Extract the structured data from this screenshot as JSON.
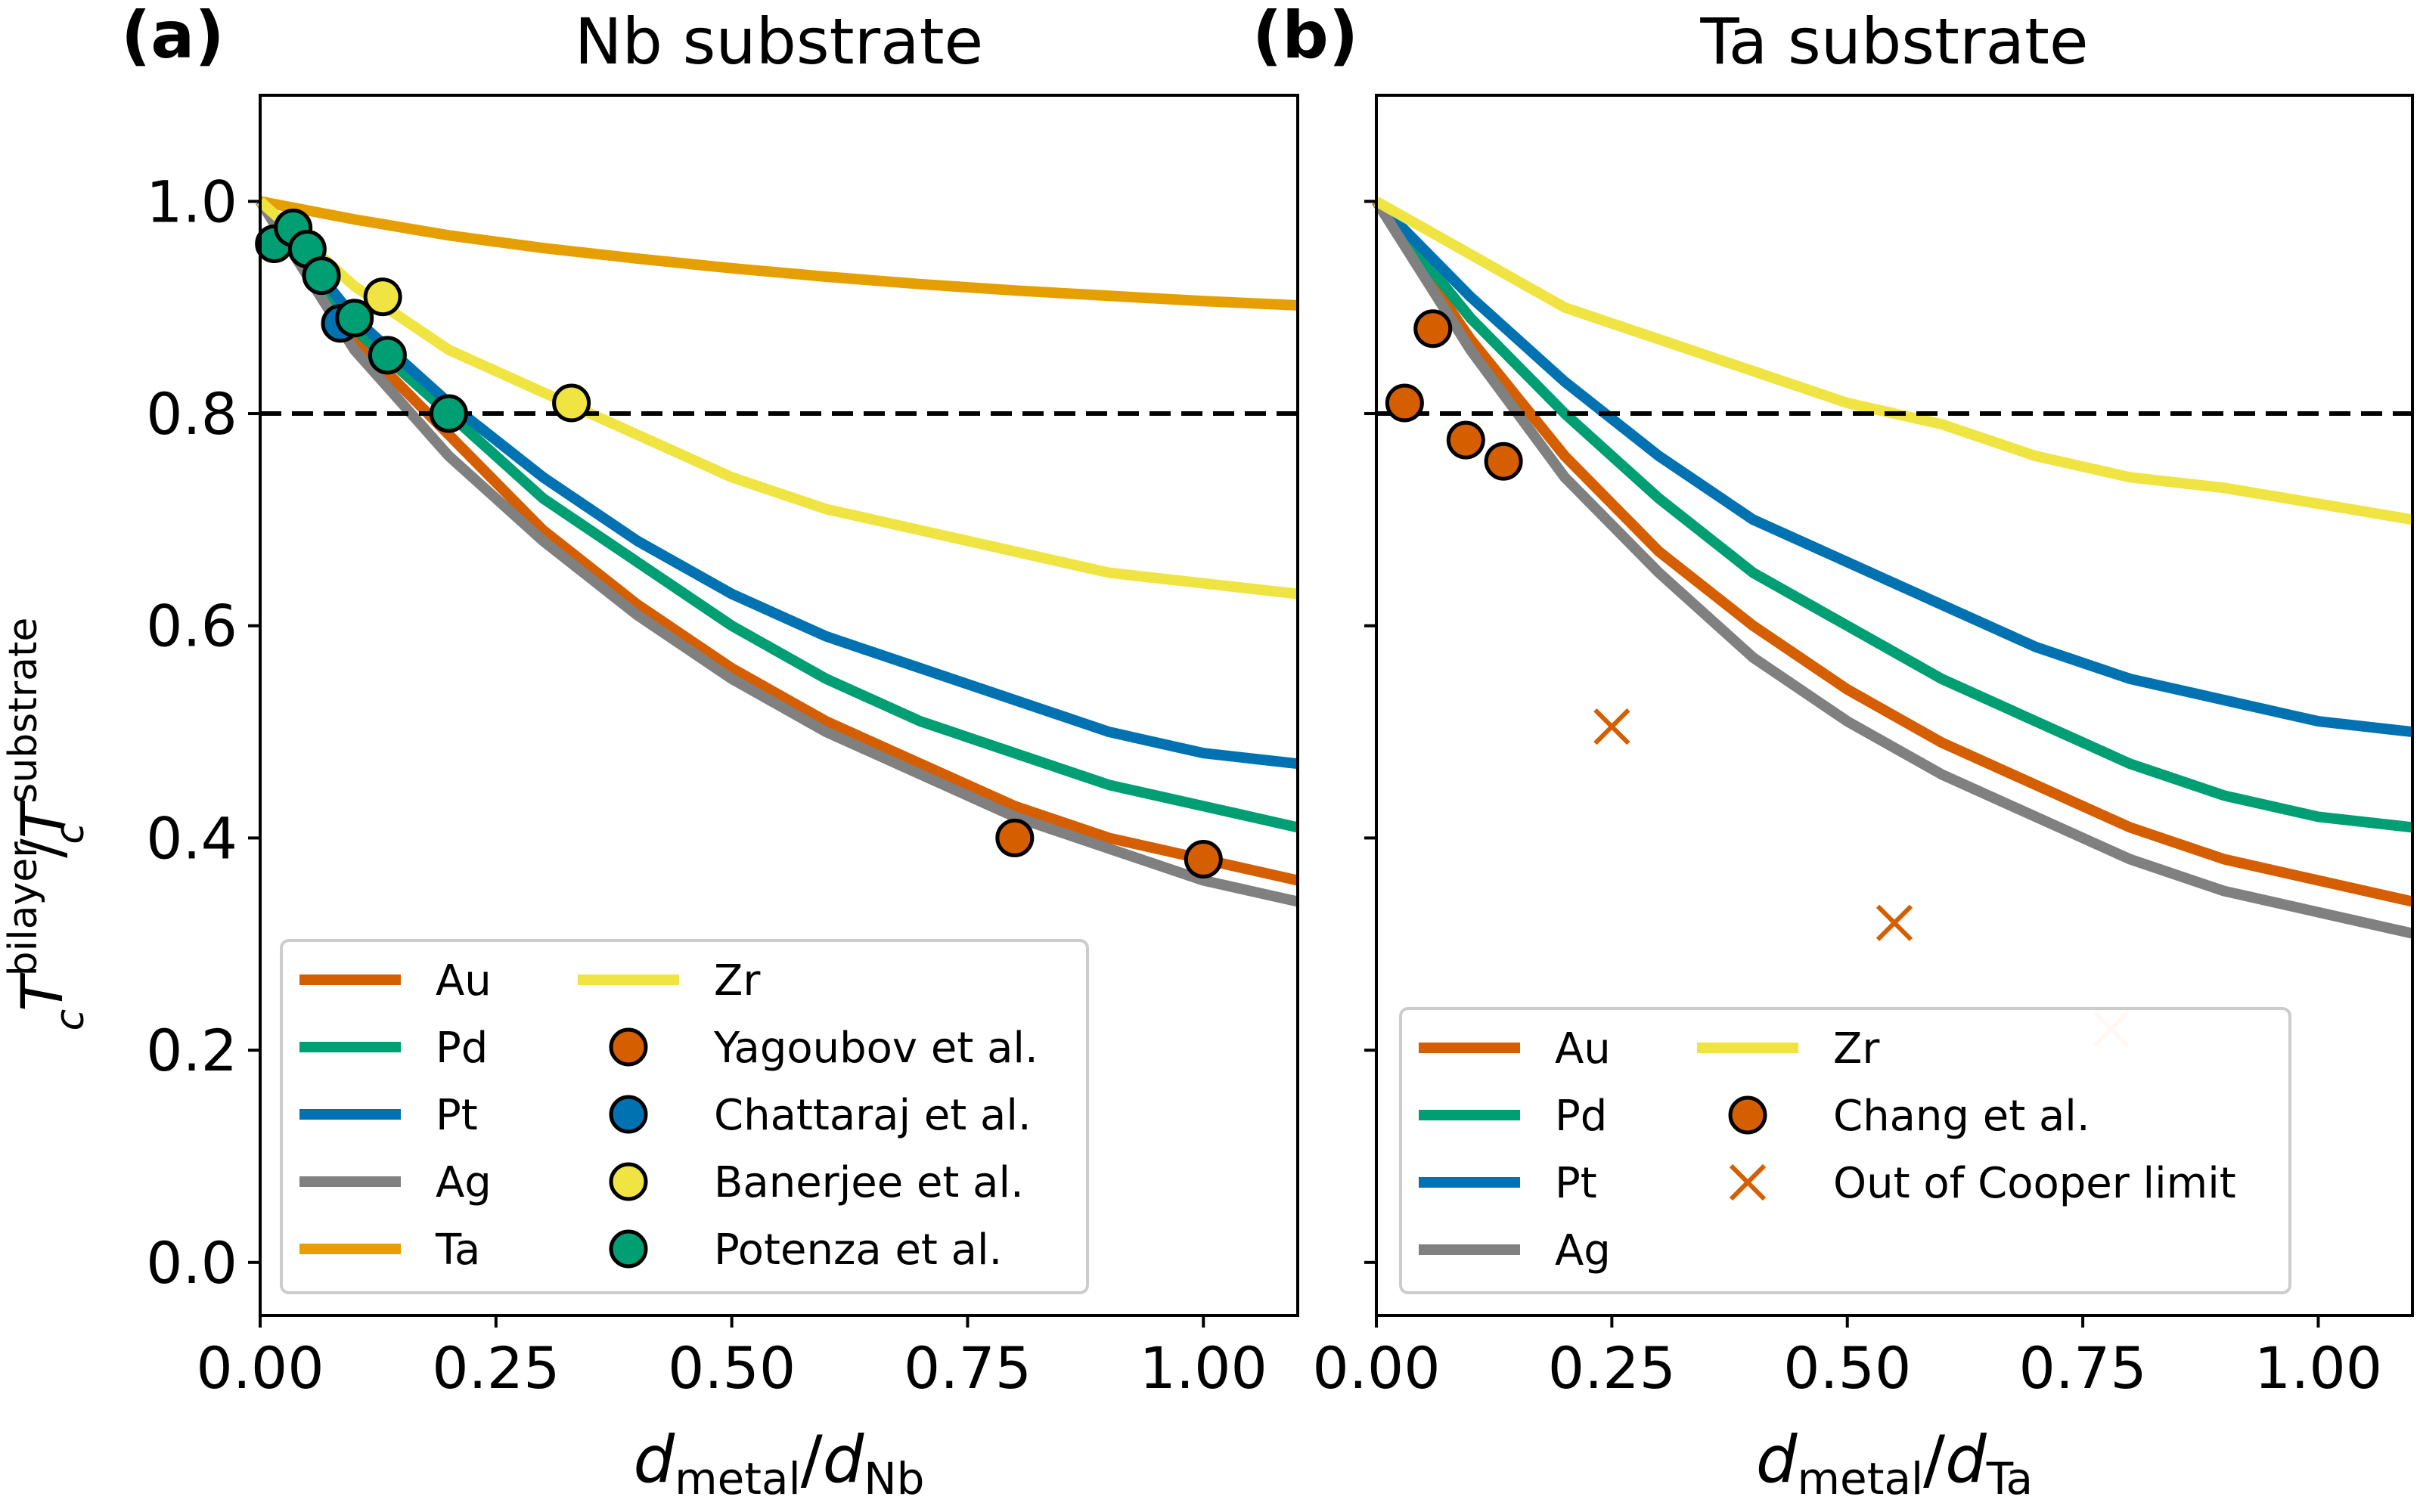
{
  "shared_ylabel": {
    "main": "T",
    "sup1": "bilayer",
    "sub1": "c",
    "slash": "/",
    "main2": "T",
    "sup2": "substrate",
    "sub2": "c"
  },
  "chart_data": [
    {
      "type": "line",
      "panel_label": "(a)",
      "title": "Nb substrate",
      "xlabel": {
        "main": "d",
        "sub1": "metal",
        "slash": "/",
        "main2": "d",
        "sub2": "Nb"
      },
      "xlim": [
        0,
        1.1
      ],
      "ylim": [
        -0.05,
        1.1
      ],
      "xticks": [
        "0.00",
        "0.25",
        "0.50",
        "0.75",
        "1.00"
      ],
      "xtick_values": [
        0,
        0.25,
        0.5,
        0.75,
        1.0
      ],
      "yticks": [
        "0.0",
        "0.2",
        "0.4",
        "0.6",
        "0.8",
        "1.0"
      ],
      "ytick_values": [
        0,
        0.2,
        0.4,
        0.6,
        0.8,
        1.0
      ],
      "reference_line": 0.8,
      "series": [
        {
          "name": "Au",
          "color": "#d55e00",
          "x": [
            0,
            0.1,
            0.2,
            0.3,
            0.4,
            0.5,
            0.6,
            0.7,
            0.8,
            0.9,
            1.0,
            1.1
          ],
          "y": [
            1.0,
            0.87,
            0.78,
            0.69,
            0.62,
            0.56,
            0.51,
            0.47,
            0.43,
            0.4,
            0.38,
            0.36
          ]
        },
        {
          "name": "Pd",
          "color": "#009e73",
          "x": [
            0,
            0.1,
            0.2,
            0.3,
            0.4,
            0.5,
            0.6,
            0.7,
            0.8,
            0.9,
            1.0,
            1.1
          ],
          "y": [
            1.0,
            0.88,
            0.8,
            0.72,
            0.66,
            0.6,
            0.55,
            0.51,
            0.48,
            0.45,
            0.43,
            0.41
          ]
        },
        {
          "name": "Pt",
          "color": "#0072b2",
          "x": [
            0,
            0.1,
            0.2,
            0.3,
            0.4,
            0.5,
            0.6,
            0.7,
            0.8,
            0.9,
            1.0,
            1.1
          ],
          "y": [
            1.0,
            0.89,
            0.81,
            0.74,
            0.68,
            0.63,
            0.59,
            0.56,
            0.53,
            0.5,
            0.48,
            0.47
          ]
        },
        {
          "name": "Ag",
          "color": "#808080",
          "x": [
            0,
            0.1,
            0.2,
            0.3,
            0.4,
            0.5,
            0.6,
            0.7,
            0.8,
            0.9,
            1.0,
            1.1
          ],
          "y": [
            1.0,
            0.86,
            0.76,
            0.68,
            0.61,
            0.55,
            0.5,
            0.46,
            0.42,
            0.39,
            0.36,
            0.34
          ]
        },
        {
          "name": "Ta",
          "color": "#e69f00",
          "x": [
            0,
            0.1,
            0.2,
            0.3,
            0.4,
            0.5,
            0.6,
            0.7,
            0.8,
            0.9,
            1.0,
            1.1
          ],
          "y": [
            1.0,
            0.983,
            0.968,
            0.956,
            0.946,
            0.937,
            0.929,
            0.922,
            0.916,
            0.911,
            0.906,
            0.902
          ]
        },
        {
          "name": "Zr",
          "color": "#f0e442",
          "x": [
            0,
            0.1,
            0.2,
            0.3,
            0.4,
            0.5,
            0.6,
            0.7,
            0.8,
            0.9,
            1.0,
            1.1
          ],
          "y": [
            1.0,
            0.92,
            0.86,
            0.82,
            0.78,
            0.74,
            0.71,
            0.69,
            0.67,
            0.65,
            0.64,
            0.63
          ]
        }
      ],
      "scatter": [
        {
          "name": "Yagoubov et al.",
          "color": "#d55e00",
          "x": [
            0.8,
            1.0
          ],
          "y": [
            0.4,
            0.38
          ]
        },
        {
          "name": "Chattaraj et al.",
          "color": "#0072b2",
          "x": [
            0.085
          ],
          "y": [
            0.885
          ]
        },
        {
          "name": "Banerjee et al.",
          "color": "#f0e442",
          "x": [
            0.13,
            0.33
          ],
          "y": [
            0.91,
            0.81
          ]
        },
        {
          "name": "Potenza et al.",
          "color": "#009e73",
          "x": [
            0.015,
            0.035,
            0.05,
            0.065,
            0.1,
            0.135,
            0.2
          ],
          "y": [
            0.96,
            0.975,
            0.955,
            0.93,
            0.89,
            0.855,
            0.8
          ]
        }
      ],
      "legend": {
        "position": "lower-left",
        "columns": 2,
        "entries": [
          {
            "label": "Au",
            "kind": "line",
            "color": "#d55e00"
          },
          {
            "label": "Pd",
            "kind": "line",
            "color": "#009e73"
          },
          {
            "label": "Pt",
            "kind": "line",
            "color": "#0072b2"
          },
          {
            "label": "Ag",
            "kind": "line",
            "color": "#808080"
          },
          {
            "label": "Ta",
            "kind": "line",
            "color": "#e69f00"
          },
          {
            "label": "Zr",
            "kind": "line",
            "color": "#f0e442"
          },
          {
            "label": "Yagoubov et al.",
            "kind": "marker",
            "color": "#d55e00"
          },
          {
            "label": "Chattaraj et al.",
            "kind": "marker",
            "color": "#0072b2"
          },
          {
            "label": "Banerjee et al.",
            "kind": "marker",
            "color": "#f0e442"
          },
          {
            "label": "Potenza et al.",
            "kind": "marker",
            "color": "#009e73"
          }
        ]
      }
    },
    {
      "type": "line",
      "panel_label": "(b)",
      "title": "Ta substrate",
      "xlabel": {
        "main": "d",
        "sub1": "metal",
        "slash": "/",
        "main2": "d",
        "sub2": "Ta"
      },
      "xlim": [
        0,
        1.1
      ],
      "ylim": [
        -0.05,
        1.1
      ],
      "xticks": [
        "0.00",
        "0.25",
        "0.50",
        "0.75",
        "1.00"
      ],
      "xtick_values": [
        0,
        0.25,
        0.5,
        0.75,
        1.0
      ],
      "yticks": [],
      "ytick_values": [
        0,
        0.2,
        0.4,
        0.6,
        0.8,
        1.0
      ],
      "reference_line": 0.8,
      "series": [
        {
          "name": "Au",
          "color": "#d55e00",
          "x": [
            0,
            0.1,
            0.2,
            0.3,
            0.4,
            0.5,
            0.6,
            0.7,
            0.8,
            0.9,
            1.0,
            1.1
          ],
          "y": [
            1.0,
            0.87,
            0.76,
            0.67,
            0.6,
            0.54,
            0.49,
            0.45,
            0.41,
            0.38,
            0.36,
            0.34
          ]
        },
        {
          "name": "Pd",
          "color": "#009e73",
          "x": [
            0,
            0.1,
            0.2,
            0.3,
            0.4,
            0.5,
            0.6,
            0.7,
            0.8,
            0.9,
            1.0,
            1.1
          ],
          "y": [
            1.0,
            0.89,
            0.8,
            0.72,
            0.65,
            0.6,
            0.55,
            0.51,
            0.47,
            0.44,
            0.42,
            0.41
          ]
        },
        {
          "name": "Pt",
          "color": "#0072b2",
          "x": [
            0,
            0.1,
            0.2,
            0.3,
            0.4,
            0.5,
            0.6,
            0.7,
            0.8,
            0.9,
            1.0,
            1.1
          ],
          "y": [
            1.0,
            0.91,
            0.83,
            0.76,
            0.7,
            0.66,
            0.62,
            0.58,
            0.55,
            0.53,
            0.51,
            0.5
          ]
        },
        {
          "name": "Ag",
          "color": "#808080",
          "x": [
            0,
            0.1,
            0.2,
            0.3,
            0.4,
            0.5,
            0.6,
            0.7,
            0.8,
            0.9,
            1.0,
            1.1
          ],
          "y": [
            1.0,
            0.86,
            0.74,
            0.65,
            0.57,
            0.51,
            0.46,
            0.42,
            0.38,
            0.35,
            0.33,
            0.31
          ]
        },
        {
          "name": "Zr",
          "color": "#f0e442",
          "x": [
            0,
            0.1,
            0.2,
            0.3,
            0.4,
            0.5,
            0.6,
            0.7,
            0.8,
            0.9,
            1.0,
            1.1
          ],
          "y": [
            1.0,
            0.95,
            0.9,
            0.87,
            0.84,
            0.81,
            0.79,
            0.76,
            0.74,
            0.73,
            0.715,
            0.7
          ]
        }
      ],
      "scatter": [
        {
          "name": "Chang et al.",
          "color": "#d55e00",
          "marker": "circle",
          "x": [
            0.03,
            0.06,
            0.095,
            0.135
          ],
          "y": [
            0.81,
            0.88,
            0.775,
            0.755
          ]
        },
        {
          "name": "Out of Cooper limit",
          "color": "#d55e00",
          "marker": "x",
          "x": [
            0.25,
            0.55,
            0.78
          ],
          "y": [
            0.505,
            0.32,
            0.22
          ],
          "alpha": [
            1.0,
            1.0,
            0.25
          ]
        }
      ],
      "legend": {
        "position": "lower-right",
        "columns": 2,
        "entries": [
          {
            "label": "Au",
            "kind": "line",
            "color": "#d55e00"
          },
          {
            "label": "Pd",
            "kind": "line",
            "color": "#009e73"
          },
          {
            "label": "Pt",
            "kind": "line",
            "color": "#0072b2"
          },
          {
            "label": "Ag",
            "kind": "line",
            "color": "#808080"
          },
          {
            "label": "Zr",
            "kind": "line",
            "color": "#f0e442"
          },
          {
            "label": "Chang et al.",
            "kind": "marker",
            "color": "#d55e00"
          },
          {
            "label": "Out of Cooper limit",
            "kind": "x",
            "color": "#d55e00"
          }
        ]
      }
    }
  ]
}
